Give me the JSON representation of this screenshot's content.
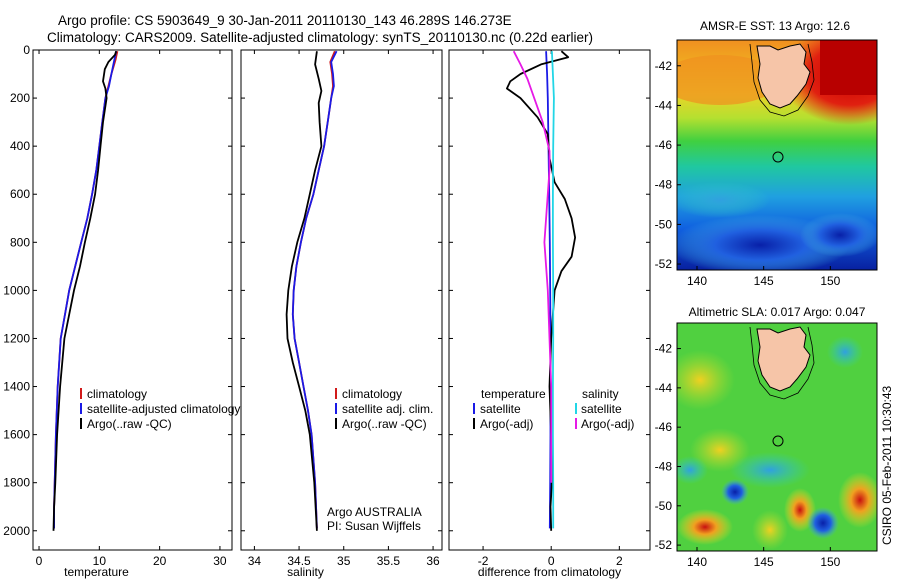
{
  "header": {
    "line1": "Argo profile: CS 5903649_9 30-Jan-2011 20110130_143 46.289S 146.273E",
    "line2": "Climatology: CARS2009. Satellite-adjusted climatology: synTS_20110130.nc (0.22d earlier)"
  },
  "side_label": "CSIRO 05-Feb-2011 10:30:43",
  "colors": {
    "climatology": "#d11a1a",
    "satellite": "#1a1ae6",
    "argo": "#000000",
    "satellite_sal": "#22d6e6",
    "argo_sal": "#e61ae6",
    "land": "#f6c5a8"
  },
  "chart_data": [
    {
      "type": "line",
      "name": "temperature-profile",
      "xlabel": "temperature",
      "ylabel": "",
      "xlim": [
        -1,
        32
      ],
      "ylim": [
        2080,
        0
      ],
      "y_reversed": true,
      "xticks": [
        0,
        10,
        20,
        30
      ],
      "yticks": [
        0,
        200,
        400,
        600,
        800,
        1000,
        1200,
        1400,
        1600,
        1800,
        2000
      ],
      "legend": [
        "climatology",
        "satellite-adjusted climatology",
        "Argo(..raw -QC)"
      ],
      "legend_position": "bottom-right",
      "series": [
        {
          "name": "climatology",
          "color": "#d11a1a",
          "x": [
            13.0,
            12.7,
            12.0,
            11.5,
            11.0,
            10.5,
            10.0,
            9.5,
            8.8,
            8.0,
            7.0,
            6.0,
            5.0,
            4.3,
            3.6,
            3.1,
            2.8,
            2.6,
            2.5,
            2.5
          ],
          "y": [
            5,
            40,
            100,
            150,
            200,
            300,
            400,
            500,
            600,
            700,
            800,
            900,
            1000,
            1100,
            1200,
            1400,
            1600,
            1800,
            1900,
            1990
          ]
        },
        {
          "name": "satellite-adjusted climatology",
          "color": "#1a1ae6",
          "x": [
            12.8,
            12.5,
            12.0,
            11.6,
            11.0,
            10.5,
            10.0,
            9.5,
            8.8,
            8.0,
            7.0,
            6.0,
            5.0,
            4.3,
            3.6,
            3.1,
            2.8,
            2.6,
            2.5,
            2.5
          ],
          "y": [
            5,
            40,
            100,
            150,
            200,
            300,
            400,
            500,
            600,
            700,
            800,
            900,
            1000,
            1100,
            1200,
            1400,
            1600,
            1800,
            1900,
            1990
          ]
        },
        {
          "name": "Argo(..raw -QC)",
          "color": "#000000",
          "x": [
            12.8,
            12.6,
            11.5,
            10.9,
            10.6,
            11.0,
            11.2,
            10.6,
            10.2,
            9.8,
            9.3,
            8.5,
            7.6,
            6.8,
            5.8,
            5.0,
            4.2,
            3.5,
            3.0,
            2.7,
            2.5,
            2.4
          ],
          "y": [
            5,
            20,
            50,
            80,
            130,
            160,
            200,
            300,
            400,
            500,
            600,
            700,
            800,
            900,
            1000,
            1100,
            1200,
            1400,
            1600,
            1800,
            1900,
            2000
          ]
        }
      ]
    },
    {
      "type": "line",
      "name": "salinity-profile",
      "xlabel": "salinity",
      "ylabel": "",
      "xlim": [
        33.85,
        36.1
      ],
      "ylim": [
        2080,
        0
      ],
      "y_reversed": true,
      "xticks": [
        34,
        34.5,
        35,
        35.5,
        36
      ],
      "legend": [
        "climatology",
        "satellite adj. clim.",
        "Argo(..raw -QC)"
      ],
      "legend_position": "bottom-right",
      "annotation": [
        "Argo AUSTRALIA",
        "PI: Susan Wijffels"
      ],
      "series": [
        {
          "name": "climatology",
          "color": "#d11a1a",
          "x": [
            34.9,
            34.85,
            34.87,
            34.88,
            34.86,
            34.82,
            34.78,
            34.72,
            34.66,
            34.58,
            34.52,
            34.47,
            34.44,
            34.43,
            34.45,
            34.5,
            34.55,
            34.6,
            34.64,
            34.68,
            34.7
          ],
          "y": [
            5,
            50,
            100,
            150,
            200,
            300,
            400,
            500,
            600,
            700,
            800,
            900,
            1000,
            1100,
            1200,
            1300,
            1400,
            1500,
            1600,
            1800,
            1990
          ]
        },
        {
          "name": "satellite adj. clim.",
          "color": "#1a1ae6",
          "x": [
            34.92,
            34.86,
            34.88,
            34.89,
            34.86,
            34.82,
            34.78,
            34.72,
            34.66,
            34.58,
            34.52,
            34.47,
            34.44,
            34.43,
            34.45,
            34.5,
            34.55,
            34.6,
            34.64,
            34.68,
            34.7
          ],
          "y": [
            5,
            50,
            100,
            150,
            200,
            300,
            400,
            500,
            600,
            700,
            800,
            900,
            1000,
            1100,
            1200,
            1300,
            1400,
            1500,
            1600,
            1800,
            1990
          ]
        },
        {
          "name": "Argo(..raw -QC)",
          "color": "#000000",
          "x": [
            34.7,
            34.68,
            34.72,
            34.75,
            34.72,
            34.73,
            34.75,
            34.68,
            34.62,
            34.56,
            34.48,
            34.42,
            34.38,
            34.36,
            34.37,
            34.43,
            34.5,
            34.57,
            34.62,
            34.67,
            34.7
          ],
          "y": [
            5,
            60,
            120,
            170,
            220,
            300,
            400,
            500,
            600,
            700,
            800,
            900,
            1000,
            1100,
            1200,
            1300,
            1400,
            1500,
            1600,
            1800,
            2000
          ]
        }
      ]
    },
    {
      "type": "line",
      "name": "difference-profile",
      "xlabel": "difference from climatology",
      "ylabel": "",
      "xlim": [
        -3,
        2.9
      ],
      "ylim": [
        2080,
        0
      ],
      "y_reversed": true,
      "xticks": [
        -2,
        0,
        2
      ],
      "legend_temperature": [
        "temperature",
        "satellite",
        "Argo(-adj)"
      ],
      "legend_salinity": [
        "salinity",
        "satellite",
        "Argo(-adj)"
      ],
      "legend_position": "bottom",
      "series": [
        {
          "name": "temperature satellite",
          "color": "#1a1ae6",
          "x": [
            -0.15,
            -0.12,
            -0.1,
            -0.08,
            -0.06,
            -0.04,
            -0.03,
            -0.02,
            -0.02,
            -0.02,
            -0.03,
            -0.04
          ],
          "y": [
            5,
            100,
            200,
            400,
            600,
            800,
            1000,
            1200,
            1400,
            1600,
            1800,
            1990
          ]
        },
        {
          "name": "temperature Argo(-adj)",
          "color": "#000000",
          "x": [
            0.3,
            0.5,
            -0.3,
            -0.9,
            -1.2,
            -1.3,
            -0.9,
            -0.4,
            -0.1,
            -0.05,
            0.1,
            0.4,
            0.6,
            0.7,
            0.6,
            0.3,
            0.1,
            0.05,
            0.0,
            -0.05,
            0.0,
            0.02,
            -0.02,
            0.0
          ],
          "y": [
            5,
            30,
            60,
            100,
            130,
            160,
            200,
            280,
            350,
            450,
            550,
            620,
            700,
            780,
            860,
            920,
            1000,
            1100,
            1200,
            1400,
            1600,
            1800,
            1900,
            2000
          ]
        },
        {
          "name": "salinity satellite",
          "color": "#22d6e6",
          "x": [
            0.02,
            0.05,
            0.08,
            0.06,
            0.05,
            0.05,
            0.06,
            0.06,
            0.05,
            0.05,
            0.06,
            0.06
          ],
          "y": [
            5,
            100,
            200,
            400,
            600,
            800,
            1000,
            1200,
            1400,
            1600,
            1800,
            1990
          ]
        },
        {
          "name": "salinity Argo(-adj)",
          "color": "#e61ae6",
          "x": [
            -1.1,
            -0.9,
            -0.7,
            -0.5,
            -0.25,
            -0.05,
            -0.05,
            -0.1,
            -0.15,
            -0.2,
            -0.15,
            -0.1,
            -0.05,
            0.0,
            0.0,
            0.0
          ],
          "y": [
            5,
            60,
            120,
            200,
            300,
            420,
            500,
            600,
            700,
            800,
            900,
            1000,
            1200,
            1400,
            1600,
            1800
          ]
        }
      ]
    },
    {
      "type": "heatmap",
      "name": "sst-map",
      "title": "AMSR-E SST: 13 Argo: 12.6",
      "xlim": [
        138.5,
        153.5
      ],
      "ylim": [
        -52.3,
        -40.7
      ],
      "xticks": [
        140,
        145,
        150
      ],
      "yticks": [
        -42,
        -44,
        -46,
        -48,
        -50,
        -52
      ],
      "marker": {
        "lon": 146.273,
        "lat": -46.289
      }
    },
    {
      "type": "heatmap",
      "name": "sla-map",
      "title": "Altimetric SLA: 0.017 Argo: 0.047",
      "xlim": [
        138.5,
        153.5
      ],
      "ylim": [
        -52.3,
        -40.7
      ],
      "xticks": [
        140,
        145,
        150
      ],
      "yticks": [
        -42,
        -44,
        -46,
        -48,
        -50,
        -52
      ],
      "marker": {
        "lon": 146.273,
        "lat": -46.289
      }
    }
  ]
}
